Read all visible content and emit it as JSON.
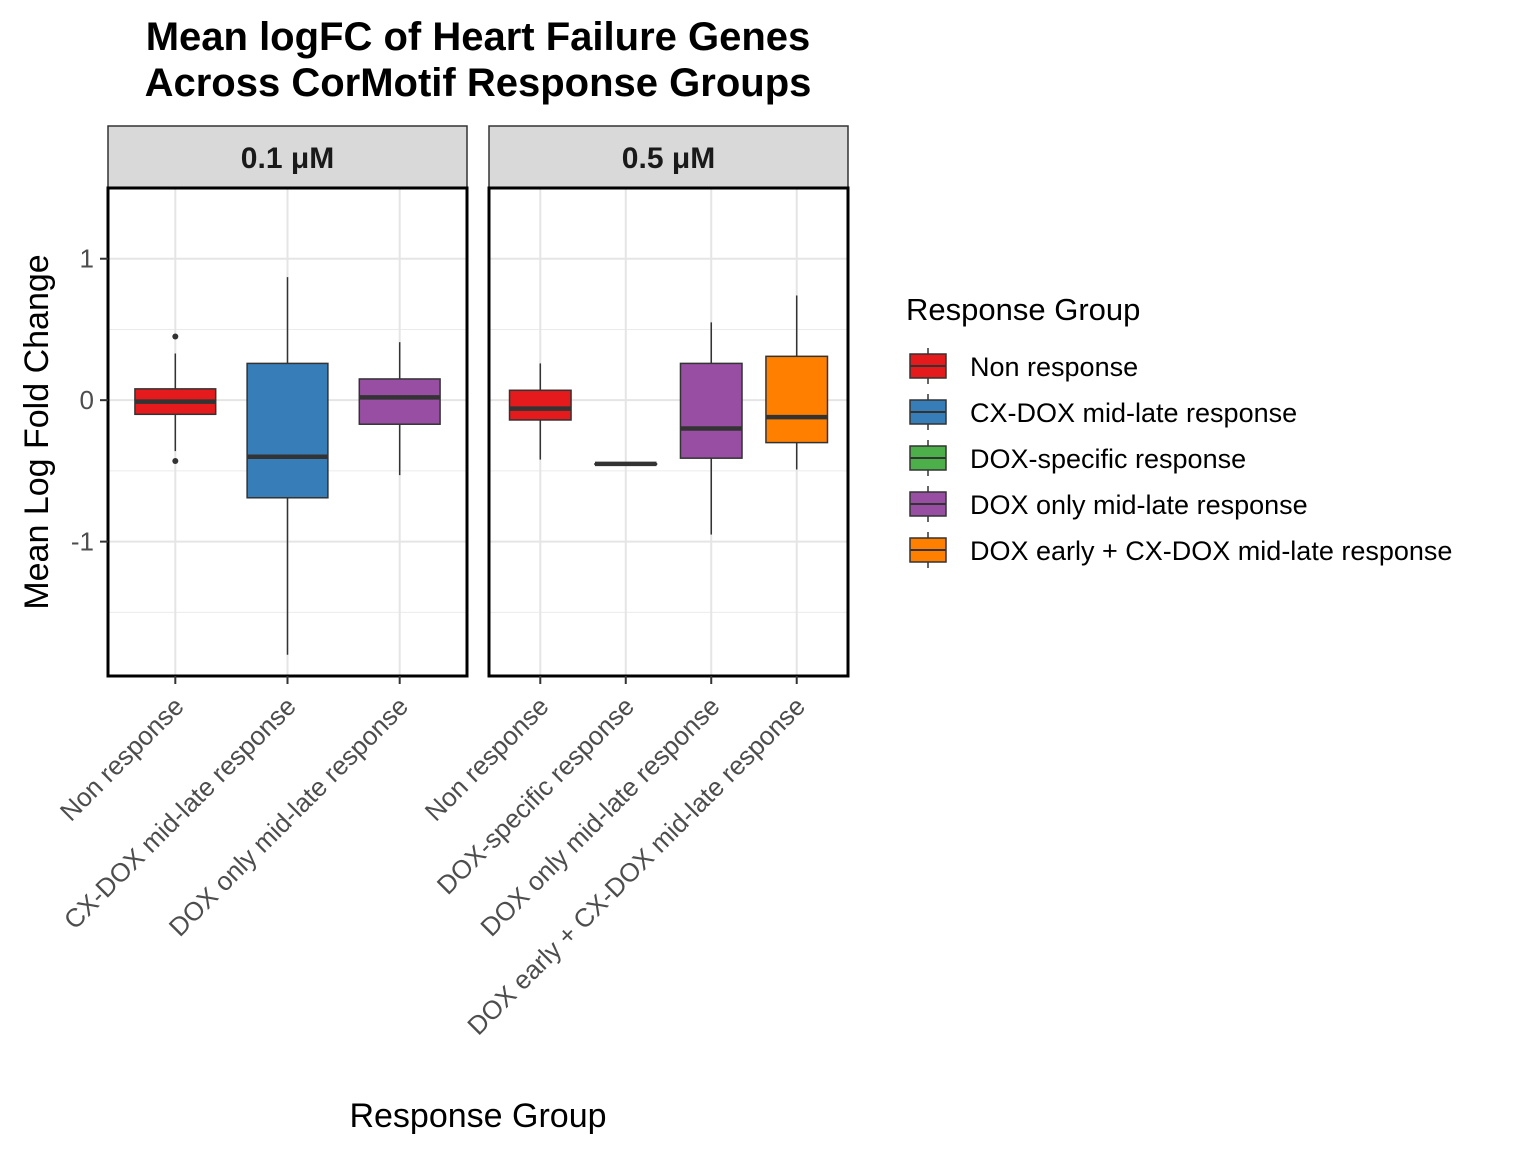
{
  "chart_data": {
    "type": "boxplot",
    "title": [
      "Mean logFC of Heart Failure Genes",
      "Across CorMotif Response Groups"
    ],
    "xlabel": "Response Group",
    "ylabel": "Mean Log Fold Change",
    "ylim": [
      -1.95,
      1.5
    ],
    "yticks": [
      1,
      0,
      -1
    ],
    "ytick_labels": [
      "1",
      "0",
      "-1"
    ],
    "grid": true,
    "legend": {
      "title": "Response Group",
      "placement": "right",
      "entries": [
        {
          "label": "Non response",
          "color": "#e41a1c"
        },
        {
          "label": "CX-DOX mid-late response",
          "color": "#377eb8"
        },
        {
          "label": "DOX-specific response",
          "color": "#4daf4a"
        },
        {
          "label": "DOX only mid-late response",
          "color": "#984ea3"
        },
        {
          "label": "DOX early + CX-DOX mid-late response",
          "color": "#ff7f00"
        }
      ]
    },
    "facets": [
      {
        "label": "0.1 μM",
        "categories": [
          "Non response",
          "CX-DOX mid-late response",
          "DOX only mid-late response"
        ],
        "boxes": [
          {
            "group": "Non response",
            "color": "#e41a1c",
            "min": -0.36,
            "q1": -0.1,
            "median": -0.01,
            "q3": 0.08,
            "max": 0.33,
            "outliers": [
              0.45,
              -0.43
            ]
          },
          {
            "group": "CX-DOX mid-late response",
            "color": "#377eb8",
            "min": -1.8,
            "q1": -0.69,
            "median": -0.4,
            "q3": 0.26,
            "max": 0.87,
            "outliers": []
          },
          {
            "group": "DOX only mid-late response",
            "color": "#984ea3",
            "min": -0.53,
            "q1": -0.17,
            "median": 0.02,
            "q3": 0.15,
            "max": 0.41,
            "outliers": []
          }
        ]
      },
      {
        "label": "0.5 μM",
        "categories": [
          "Non response",
          "DOX-specific response",
          "DOX only mid-late response",
          "DOX early + CX-DOX mid-late response"
        ],
        "boxes": [
          {
            "group": "Non response",
            "color": "#e41a1c",
            "min": -0.42,
            "q1": -0.14,
            "median": -0.06,
            "q3": 0.07,
            "max": 0.26,
            "outliers": []
          },
          {
            "group": "DOX-specific response",
            "color": "#4daf4a",
            "min": -0.45,
            "q1": -0.45,
            "median": -0.45,
            "q3": -0.45,
            "max": -0.45,
            "outliers": []
          },
          {
            "group": "DOX only mid-late response",
            "color": "#984ea3",
            "min": -0.95,
            "q1": -0.41,
            "median": -0.2,
            "q3": 0.26,
            "max": 0.55,
            "outliers": []
          },
          {
            "group": "DOX early + CX-DOX mid-late response",
            "color": "#ff7f00",
            "min": -0.49,
            "q1": -0.3,
            "median": -0.12,
            "q3": 0.31,
            "max": 0.74,
            "outliers": []
          }
        ]
      }
    ]
  }
}
